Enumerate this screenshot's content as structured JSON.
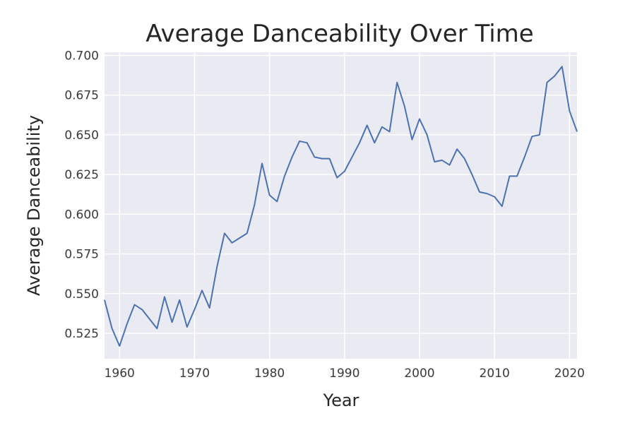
{
  "chart_data": {
    "type": "line",
    "title": "Average Danceability Over Time",
    "xlabel": "Year",
    "ylabel": "Average Danceability",
    "xlim": [
      1958,
      2021
    ],
    "ylim": [
      0.509,
      0.702
    ],
    "x_ticks": [
      1960,
      1970,
      1980,
      1990,
      2000,
      2010,
      2020
    ],
    "y_ticks": [
      0.525,
      0.55,
      0.575,
      0.6,
      0.625,
      0.65,
      0.675,
      0.7
    ],
    "y_tick_labels": [
      "0.525",
      "0.550",
      "0.575",
      "0.600",
      "0.625",
      "0.650",
      "0.675",
      "0.700"
    ],
    "x_tick_labels": [
      "1960",
      "1970",
      "1980",
      "1990",
      "2000",
      "2010",
      "2020"
    ],
    "grid": true,
    "legend": "none",
    "colors": {
      "line": "#4c72b0",
      "plot_background": "#eaeaf2",
      "grid": "#ffffff"
    },
    "x": [
      1958,
      1959,
      1960,
      1961,
      1962,
      1963,
      1964,
      1965,
      1966,
      1967,
      1968,
      1969,
      1970,
      1971,
      1972,
      1973,
      1974,
      1975,
      1976,
      1977,
      1978,
      1979,
      1980,
      1981,
      1982,
      1983,
      1984,
      1985,
      1986,
      1987,
      1988,
      1989,
      1990,
      1991,
      1992,
      1993,
      1994,
      1995,
      1996,
      1997,
      1998,
      1999,
      2000,
      2001,
      2002,
      2003,
      2004,
      2005,
      2006,
      2007,
      2008,
      2009,
      2010,
      2011,
      2012,
      2013,
      2014,
      2015,
      2016,
      2017,
      2018,
      2019,
      2020,
      2021
    ],
    "values": [
      0.546,
      0.528,
      0.517,
      0.531,
      0.543,
      0.54,
      0.534,
      0.528,
      0.548,
      0.532,
      0.546,
      0.529,
      0.54,
      0.552,
      0.541,
      0.567,
      0.588,
      0.582,
      0.585,
      0.588,
      0.606,
      0.632,
      0.612,
      0.608,
      0.624,
      0.636,
      0.646,
      0.645,
      0.636,
      0.635,
      0.635,
      0.623,
      0.627,
      0.636,
      0.645,
      0.656,
      0.645,
      0.655,
      0.652,
      0.683,
      0.668,
      0.647,
      0.66,
      0.65,
      0.633,
      0.634,
      0.631,
      0.641,
      0.635,
      0.625,
      0.614,
      0.613,
      0.611,
      0.605,
      0.624,
      0.624,
      0.636,
      0.649,
      0.65,
      0.683,
      0.687,
      0.693,
      0.665,
      0.652
    ]
  }
}
